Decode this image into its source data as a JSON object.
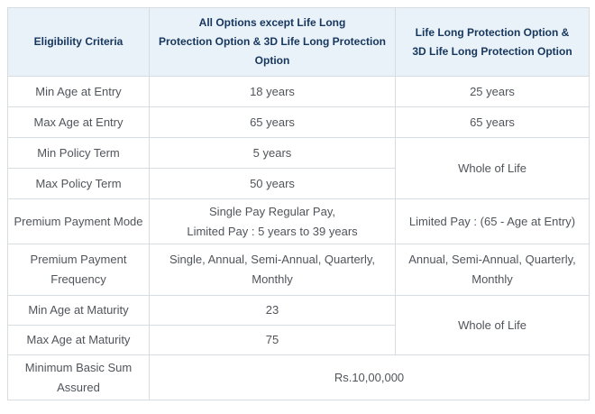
{
  "colors": {
    "header_bg": "#e9f2f9",
    "header_text": "#17365d",
    "body_text": "#50555b",
    "border": "#d7dce0",
    "page_bg": "#ffffff"
  },
  "table": {
    "header": {
      "criteria": "Eligibility Criteria",
      "all_options": "All Options except Life Long\nProtection Option & 3D Life Long Protection\nOption",
      "life_long": "Life Long Protection Option &\n3D Life Long Protection Option"
    },
    "rows": [
      {
        "label": "Min Age at Entry",
        "all_options": "18 years",
        "life_long": "25 years"
      },
      {
        "label": "Max Age at Entry",
        "all_options": "65 years",
        "life_long": "65 years"
      },
      {
        "label": "Min Policy Term",
        "all_options": "5 years",
        "life_long": "Whole of Life"
      },
      {
        "label": "Max Policy Term",
        "all_options": "50 years"
      },
      {
        "label": "Premium Payment Mode",
        "all_options": "Single Pay Regular Pay,\nLimited Pay : 5 years to 39 years",
        "life_long": "Limited Pay : (65 - Age at Entry)"
      },
      {
        "label": "Premium Payment\nFrequency",
        "all_options": "Single, Annual, Semi-Annual, Quarterly,\nMonthly",
        "life_long": "Annual, Semi-Annual, Quarterly,\nMonthly"
      },
      {
        "label": "Min Age at Maturity",
        "all_options": "23",
        "life_long": "Whole of Life"
      },
      {
        "label": "Max Age at Maturity",
        "all_options": "75"
      },
      {
        "label": "Minimum Basic Sum\nAssured",
        "merged_value": "Rs.10,00,000"
      }
    ]
  }
}
